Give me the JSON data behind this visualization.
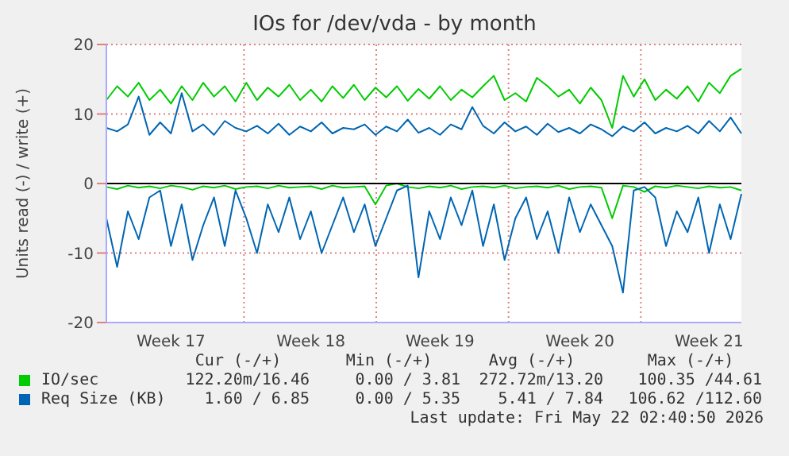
{
  "chart_data": {
    "type": "line",
    "title": "IOs for /dev/vda - by month",
    "ylabel": "Units read (-) / write (+)",
    "categories": [
      null,
      null,
      null,
      null,
      null,
      null,
      "Week 17",
      null,
      null,
      null,
      null,
      null,
      null,
      null,
      null,
      null,
      null,
      null,
      null,
      "Week 18",
      null,
      null,
      null,
      null,
      null,
      null,
      null,
      null,
      null,
      null,
      null,
      "Week 19",
      null,
      null,
      null,
      null,
      null,
      null,
      null,
      null,
      null,
      null,
      null,
      null,
      "Week 20",
      null,
      null,
      null,
      null,
      null,
      null,
      null,
      null,
      null,
      null,
      null,
      "Week 21",
      null,
      null,
      null
    ],
    "series": [
      {
        "name": "IO/sec",
        "color": "#00cc00",
        "values": [
          12,
          14,
          12.5,
          14.5,
          12,
          13.5,
          11.5,
          14,
          12,
          14.5,
          12.5,
          14,
          11.8,
          14.5,
          12,
          13.8,
          12.5,
          14.2,
          12,
          13.5,
          11.8,
          14,
          12.3,
          14.2,
          12,
          13.8,
          12.4,
          14,
          11.9,
          13.6,
          12.2,
          14,
          12,
          13.5,
          12.4,
          14,
          15.5,
          12,
          13,
          11.8,
          15.2,
          14,
          12.5,
          13.5,
          11.5,
          13.8,
          12,
          8,
          15.5,
          12.5,
          15,
          12,
          13.5,
          12.2,
          14,
          11.8,
          14.5,
          13,
          15.5,
          16.5
        ]
      },
      {
        "color": "#00cc00",
        "values": [
          -0.5,
          -0.8,
          -0.3,
          -0.6,
          -0.4,
          -0.7,
          -0.3,
          -0.5,
          -0.9,
          -0.4,
          -0.6,
          -0.3,
          -0.8,
          -0.5,
          -0.4,
          -0.7,
          -0.3,
          -0.6,
          -0.5,
          -0.4,
          -0.8,
          -0.3,
          -0.6,
          -0.5,
          -0.4,
          -3,
          -0.3,
          0,
          -0.5,
          -0.7,
          -0.4,
          -0.6,
          -0.3,
          -0.8,
          -0.5,
          -0.4,
          -0.6,
          -0.3,
          -0.7,
          -0.5,
          -0.4,
          -0.6,
          -0.3,
          -0.8,
          -0.5,
          -0.4,
          -0.6,
          -5,
          -0.3,
          -0.5,
          -1.2,
          -0.4,
          -0.6,
          -0.3,
          -0.5,
          -0.7,
          -0.4,
          -0.6,
          -0.5,
          -1
        ]
      },
      {
        "name": "Req Size (KB)",
        "color": "#0066b3",
        "values": [
          8,
          7.5,
          8.5,
          12.5,
          7,
          8.8,
          7.2,
          13,
          7.5,
          8.5,
          7,
          9,
          8,
          7.5,
          8.3,
          7.2,
          8.6,
          7,
          8.2,
          7.5,
          8.8,
          7.2,
          8,
          7.8,
          8.5,
          7,
          8.2,
          7.5,
          9.2,
          7.3,
          8,
          7,
          8.5,
          7.8,
          11,
          8.3,
          7.2,
          8.8,
          7.5,
          8.2,
          7,
          8.6,
          7.4,
          8,
          7.2,
          8.5,
          7.8,
          6.8,
          8.2,
          7.5,
          8.8,
          7.2,
          8,
          7.5,
          8.3,
          7.2,
          9,
          7.5,
          9.5,
          7.2
        ]
      },
      {
        "color": "#0066b3",
        "values": [
          -5,
          -12,
          -4,
          -8,
          -2,
          -1,
          -9,
          -3,
          -11,
          -6,
          -2,
          -9,
          -1,
          -5,
          -10,
          -3,
          -7,
          -2,
          -8,
          -4,
          -10,
          -6,
          -2,
          -7,
          -3,
          -9,
          -5,
          -1,
          -0.3,
          -13.5,
          -4,
          -8,
          -2,
          -6,
          -1,
          -9,
          -3,
          -11,
          -5,
          -2,
          -8,
          -4,
          -10,
          -2,
          -7,
          -3,
          -6,
          -9,
          -15.7,
          -1,
          -0.5,
          -2,
          -9,
          -4,
          -7,
          -2,
          -10,
          -3,
          -8,
          -1.5
        ]
      }
    ],
    "ylim": [
      -20,
      20
    ],
    "yticks": [
      -20,
      -10,
      0,
      10,
      20
    ],
    "grid": true,
    "legend": "bottom",
    "ref_lines": [
      {
        "axis": "y",
        "value": 0,
        "color": "#000000"
      }
    ],
    "annotations": [
      "Cur (-/+)",
      "Min (-/+)",
      "Avg (-/+)",
      "Max (-/+)",
      "122.20m/16.46",
      "0.00 / 3.81",
      "272.72m/13.20",
      "100.35 /44.61",
      "1.60 / 6.85",
      "0.00 / 5.35",
      "5.41 / 7.84",
      "106.62 /112.60",
      "Last update: Fri May 22 02:40:50 2026"
    ]
  }
}
